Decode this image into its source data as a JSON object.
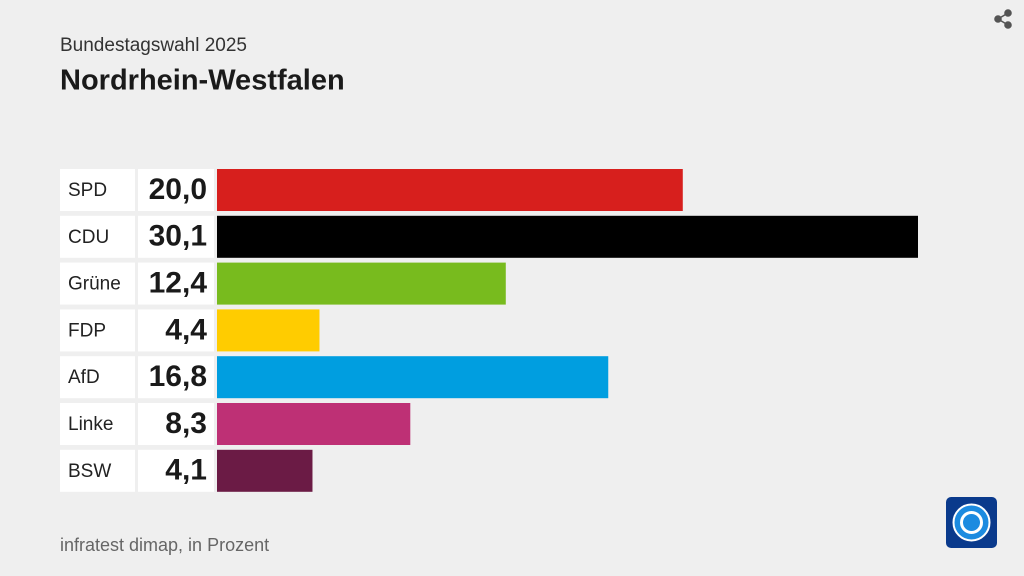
{
  "chart_data": {
    "type": "bar",
    "orientation": "horizontal",
    "subtitle": "Bundestagswahl 2025",
    "title": "Nordrhein-Westfalen",
    "source": "infratest dimap, in Prozent",
    "categories": [
      "SPD",
      "CDU",
      "Grüne",
      "FDP",
      "AfD",
      "Linke",
      "BSW"
    ],
    "values": [
      20.0,
      30.1,
      12.4,
      4.4,
      16.8,
      8.3,
      4.1
    ],
    "value_labels": [
      "20,0",
      "30,1",
      "12,4",
      "4,4",
      "16,8",
      "8,3",
      "4,1"
    ],
    "colors": [
      "#d71f1d",
      "#000000",
      "#78bb1e",
      "#ffcc00",
      "#009ee0",
      "#be3075",
      "#6b1b45"
    ]
  }
}
